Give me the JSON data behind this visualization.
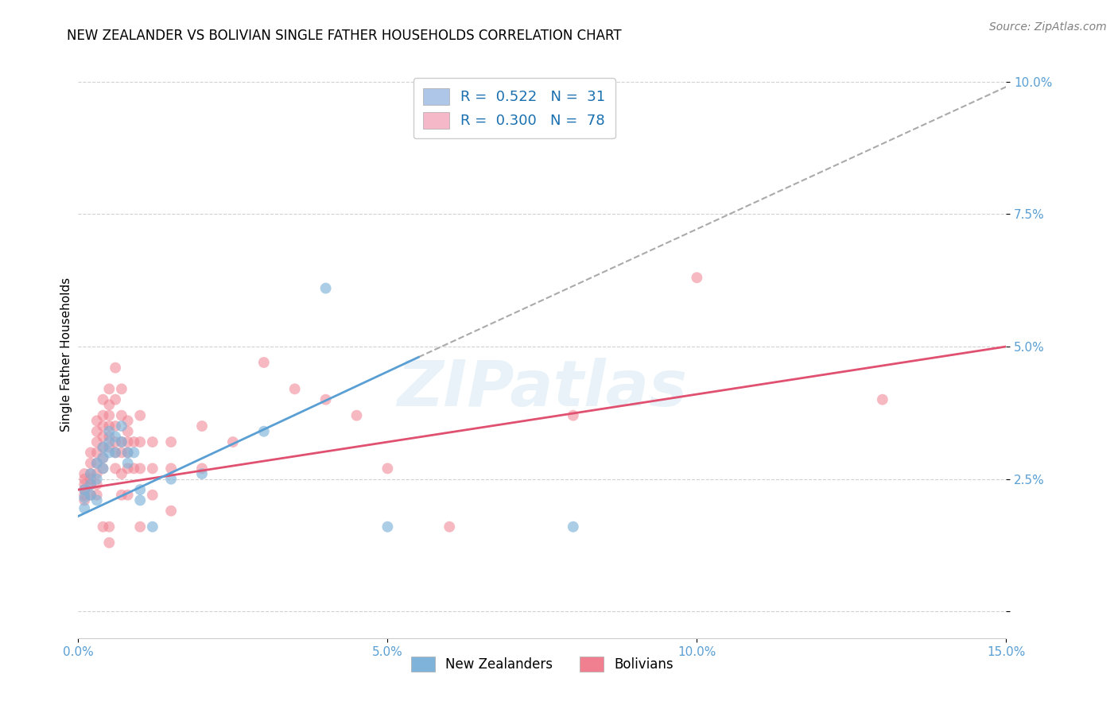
{
  "title": "NEW ZEALANDER VS BOLIVIAN SINGLE FATHER HOUSEHOLDS CORRELATION CHART",
  "source": "Source: ZipAtlas.com",
  "ylabel": "Single Father Households",
  "x_min": 0.0,
  "x_max": 0.15,
  "y_min": -0.005,
  "y_max": 0.102,
  "x_ticks": [
    0.0,
    0.05,
    0.1,
    0.15
  ],
  "x_tick_labels": [
    "0.0%",
    "5.0%",
    "10.0%",
    "15.0%"
  ],
  "y_ticks": [
    0.0,
    0.025,
    0.05,
    0.075,
    0.1
  ],
  "y_tick_labels": [
    "",
    "2.5%",
    "5.0%",
    "7.5%",
    "10.0%"
  ],
  "legend_entries": [
    {
      "label": "R =  0.522   N =  31",
      "patch_color": "#aec6e8",
      "text_color": "#1a6faf"
    },
    {
      "label": "R =  0.300   N =  78",
      "patch_color": "#f4b8c8",
      "text_color": "#1a6faf"
    }
  ],
  "legend_labels": [
    "New Zealanders",
    "Bolivians"
  ],
  "nz_color": "#7fb3d9",
  "bolivia_color": "#f08090",
  "nz_scatter": [
    [
      0.001,
      0.0215
    ],
    [
      0.001,
      0.0195
    ],
    [
      0.001,
      0.023
    ],
    [
      0.002,
      0.026
    ],
    [
      0.002,
      0.022
    ],
    [
      0.002,
      0.024
    ],
    [
      0.003,
      0.025
    ],
    [
      0.003,
      0.021
    ],
    [
      0.003,
      0.028
    ],
    [
      0.004,
      0.031
    ],
    [
      0.004,
      0.029
    ],
    [
      0.004,
      0.027
    ],
    [
      0.005,
      0.034
    ],
    [
      0.005,
      0.032
    ],
    [
      0.005,
      0.03
    ],
    [
      0.006,
      0.033
    ],
    [
      0.006,
      0.03
    ],
    [
      0.007,
      0.035
    ],
    [
      0.007,
      0.032
    ],
    [
      0.008,
      0.03
    ],
    [
      0.008,
      0.028
    ],
    [
      0.009,
      0.03
    ],
    [
      0.01,
      0.023
    ],
    [
      0.01,
      0.021
    ],
    [
      0.012,
      0.016
    ],
    [
      0.015,
      0.025
    ],
    [
      0.02,
      0.026
    ],
    [
      0.03,
      0.034
    ],
    [
      0.04,
      0.061
    ],
    [
      0.05,
      0.016
    ],
    [
      0.08,
      0.016
    ]
  ],
  "bolivia_scatter": [
    [
      0.001,
      0.026
    ],
    [
      0.001,
      0.025
    ],
    [
      0.001,
      0.024
    ],
    [
      0.001,
      0.023
    ],
    [
      0.001,
      0.022
    ],
    [
      0.001,
      0.021
    ],
    [
      0.002,
      0.03
    ],
    [
      0.002,
      0.028
    ],
    [
      0.002,
      0.026
    ],
    [
      0.002,
      0.025
    ],
    [
      0.002,
      0.024
    ],
    [
      0.002,
      0.022
    ],
    [
      0.003,
      0.036
    ],
    [
      0.003,
      0.034
    ],
    [
      0.003,
      0.032
    ],
    [
      0.003,
      0.03
    ],
    [
      0.003,
      0.028
    ],
    [
      0.003,
      0.026
    ],
    [
      0.003,
      0.024
    ],
    [
      0.003,
      0.022
    ],
    [
      0.004,
      0.04
    ],
    [
      0.004,
      0.037
    ],
    [
      0.004,
      0.035
    ],
    [
      0.004,
      0.033
    ],
    [
      0.004,
      0.031
    ],
    [
      0.004,
      0.029
    ],
    [
      0.004,
      0.027
    ],
    [
      0.004,
      0.016
    ],
    [
      0.005,
      0.042
    ],
    [
      0.005,
      0.039
    ],
    [
      0.005,
      0.037
    ],
    [
      0.005,
      0.035
    ],
    [
      0.005,
      0.033
    ],
    [
      0.005,
      0.031
    ],
    [
      0.005,
      0.016
    ],
    [
      0.005,
      0.013
    ],
    [
      0.006,
      0.046
    ],
    [
      0.006,
      0.04
    ],
    [
      0.006,
      0.035
    ],
    [
      0.006,
      0.032
    ],
    [
      0.006,
      0.03
    ],
    [
      0.006,
      0.027
    ],
    [
      0.007,
      0.042
    ],
    [
      0.007,
      0.037
    ],
    [
      0.007,
      0.032
    ],
    [
      0.007,
      0.03
    ],
    [
      0.007,
      0.026
    ],
    [
      0.007,
      0.022
    ],
    [
      0.008,
      0.036
    ],
    [
      0.008,
      0.034
    ],
    [
      0.008,
      0.032
    ],
    [
      0.008,
      0.03
    ],
    [
      0.008,
      0.027
    ],
    [
      0.008,
      0.022
    ],
    [
      0.009,
      0.032
    ],
    [
      0.009,
      0.027
    ],
    [
      0.01,
      0.037
    ],
    [
      0.01,
      0.032
    ],
    [
      0.01,
      0.027
    ],
    [
      0.01,
      0.016
    ],
    [
      0.012,
      0.032
    ],
    [
      0.012,
      0.027
    ],
    [
      0.012,
      0.022
    ],
    [
      0.015,
      0.032
    ],
    [
      0.015,
      0.027
    ],
    [
      0.015,
      0.019
    ],
    [
      0.02,
      0.035
    ],
    [
      0.02,
      0.027
    ],
    [
      0.025,
      0.032
    ],
    [
      0.03,
      0.047
    ],
    [
      0.035,
      0.042
    ],
    [
      0.04,
      0.04
    ],
    [
      0.045,
      0.037
    ],
    [
      0.05,
      0.027
    ],
    [
      0.06,
      0.016
    ],
    [
      0.08,
      0.037
    ],
    [
      0.1,
      0.063
    ],
    [
      0.13,
      0.04
    ]
  ],
  "nz_solid_line": {
    "x0": 0.0,
    "y0": 0.018,
    "x1": 0.055,
    "y1": 0.048
  },
  "nz_dash_line": {
    "x0": 0.055,
    "y0": 0.048,
    "x1": 0.15,
    "y1": 0.099
  },
  "bolivia_line": {
    "x0": 0.0,
    "y0": 0.023,
    "x1": 0.15,
    "y1": 0.05
  },
  "nz_line_color": "#5a9fd4",
  "nz_dash_color": "#aaaaaa",
  "bolivia_line_color": "#e05070",
  "background_color": "#ffffff",
  "grid_color": "#cccccc",
  "title_fontsize": 12,
  "axis_label_fontsize": 11,
  "tick_fontsize": 11,
  "source_fontsize": 10
}
